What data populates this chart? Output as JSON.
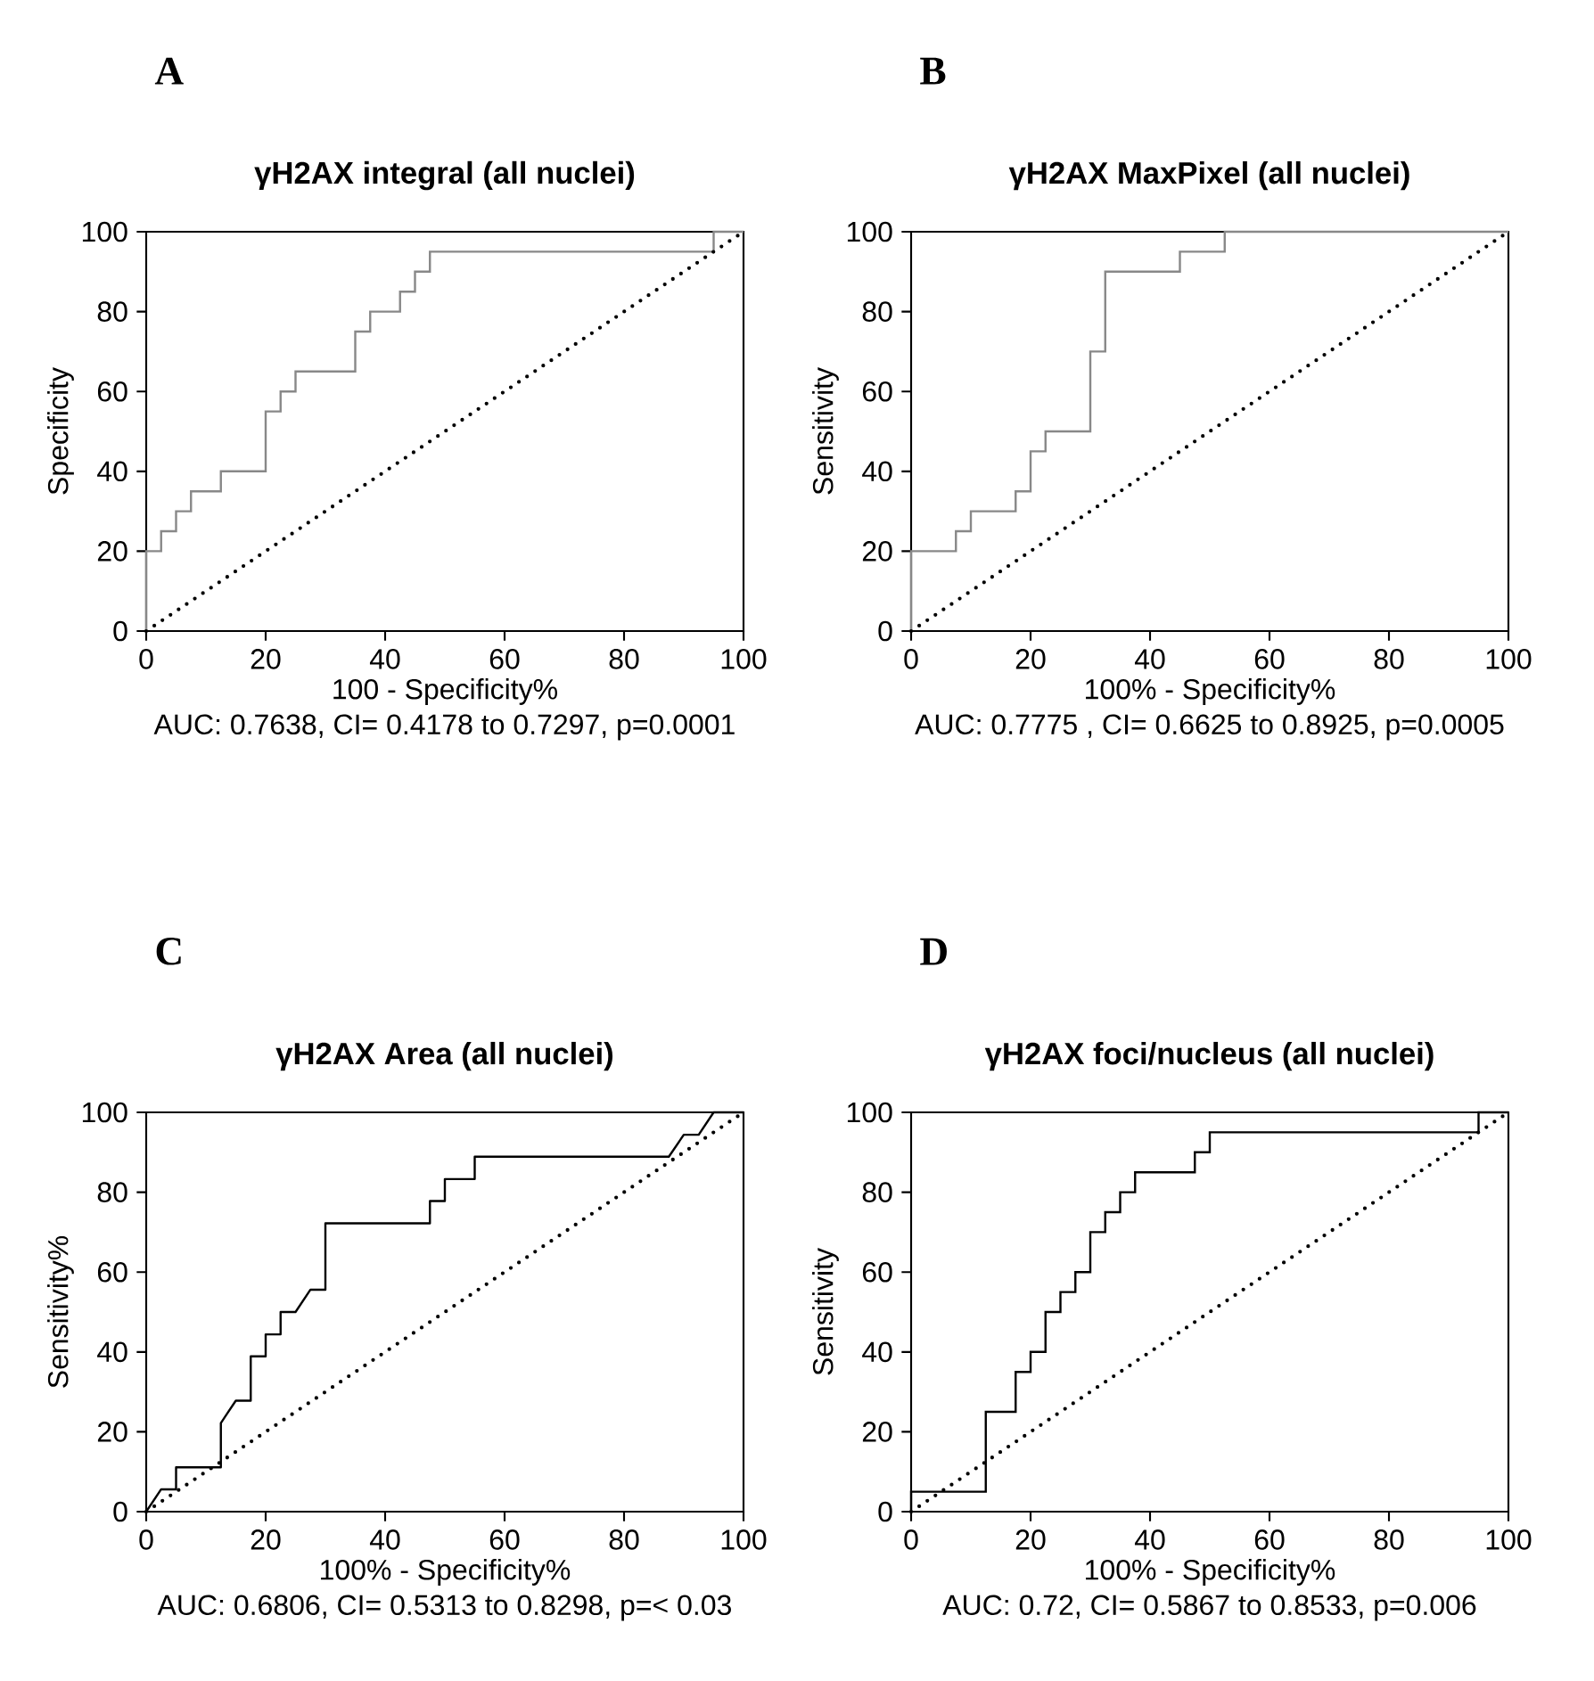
{
  "chart_data": [
    {
      "type": "line",
      "title": "γH2AX integral (all nuclei)",
      "xlabel": "100 - Specificity%",
      "ylabel": "Specificity",
      "annotations": [
        "A",
        "AUC: 0.7638, CI= 0.4178 to 0.7297, p=0.0001"
      ],
      "xlim": [
        0,
        100
      ],
      "ylim": [
        0,
        100
      ],
      "xticks": [
        0,
        20,
        40,
        60,
        80,
        100
      ],
      "yticks": [
        0,
        20,
        40,
        60,
        80,
        100
      ],
      "series": [
        {
          "type": "step",
          "color": "#888888",
          "x": [
            0,
            0,
            2.5,
            5,
            7.5,
            12.5,
            20,
            22.5,
            25,
            35,
            37.5,
            42.5,
            45,
            47.5,
            95,
            100
          ],
          "values": [
            0,
            20,
            25,
            30,
            35,
            40,
            55,
            60,
            65,
            75,
            80,
            85,
            90,
            95,
            100,
            100
          ]
        },
        {
          "type": "line",
          "color": "#000000",
          "line_style": "dotted",
          "x": [
            0,
            100
          ],
          "values": [
            0,
            100
          ]
        }
      ]
    },
    {
      "type": "line",
      "title": "γH2AX MaxPixel (all nuclei)",
      "xlabel": "100% - Specificity%",
      "ylabel": "Sensitivity",
      "annotations": [
        "B",
        "AUC: 0.7775 , CI= 0.6625 to 0.8925, p=0.0005"
      ],
      "xlim": [
        0,
        100
      ],
      "ylim": [
        0,
        100
      ],
      "xticks": [
        0,
        20,
        40,
        60,
        80,
        100
      ],
      "yticks": [
        0,
        20,
        40,
        60,
        80,
        100
      ],
      "series": [
        {
          "type": "step",
          "color": "#888888",
          "x": [
            0,
            0,
            7.5,
            10,
            17.5,
            20,
            22.5,
            30,
            32.5,
            45,
            52.5,
            100
          ],
          "values": [
            0,
            20,
            25,
            30,
            35,
            45,
            50,
            70,
            90,
            95,
            100,
            100
          ]
        },
        {
          "type": "line",
          "color": "#000000",
          "line_style": "dotted",
          "x": [
            0,
            100
          ],
          "values": [
            0,
            100
          ]
        }
      ]
    },
    {
      "type": "line",
      "title": "γH2AX Area (all nuclei)",
      "xlabel": "100% - Specificity%",
      "ylabel": "Sensitivity%",
      "annotations": [
        "C",
        "AUC: 0.6806, CI= 0.5313 to 0.8298, p=< 0.03"
      ],
      "xlim": [
        0,
        100
      ],
      "ylim": [
        0,
        100
      ],
      "xticks": [
        0,
        20,
        40,
        60,
        80,
        100
      ],
      "yticks": [
        0,
        20,
        40,
        60,
        80,
        100
      ],
      "series": [
        {
          "color": "#000000",
          "x": [
            0,
            2.5,
            5,
            5,
            12.5,
            12.5,
            15,
            17.5,
            17.5,
            20,
            20,
            22.5,
            22.5,
            25,
            27.5,
            30,
            30,
            47.5,
            47.5,
            50,
            50,
            55,
            55,
            87.5,
            90,
            92.5,
            95,
            100
          ],
          "values": [
            0,
            5.6,
            5.6,
            11.1,
            11.1,
            22.2,
            27.8,
            27.8,
            38.9,
            38.9,
            44.4,
            44.4,
            50,
            50,
            55.6,
            55.6,
            72.2,
            72.2,
            77.8,
            77.8,
            83.3,
            83.3,
            88.9,
            88.9,
            94.4,
            94.4,
            100,
            100
          ]
        },
        {
          "type": "line",
          "color": "#000000",
          "line_style": "dotted",
          "x": [
            0,
            100
          ],
          "values": [
            0,
            100
          ]
        }
      ]
    },
    {
      "type": "line",
      "title": "γH2AX foci/nucleus (all nuclei)",
      "xlabel": "100% - Specificity%",
      "ylabel": "Sensitivity",
      "annotations": [
        "D",
        "AUC: 0.72, CI= 0.5867 to 0.8533, p=0.006"
      ],
      "xlim": [
        0,
        100
      ],
      "ylim": [
        0,
        100
      ],
      "xticks": [
        0,
        20,
        40,
        60,
        80,
        100
      ],
      "yticks": [
        0,
        20,
        40,
        60,
        80,
        100
      ],
      "series": [
        {
          "type": "step",
          "color": "#000000",
          "x": [
            0,
            0,
            12.5,
            17.5,
            20,
            22.5,
            25,
            27.5,
            30,
            32.5,
            35,
            37.5,
            47.5,
            50,
            95,
            100
          ],
          "values": [
            0,
            5,
            25,
            35,
            40,
            50,
            55,
            60,
            70,
            75,
            80,
            85,
            90,
            95,
            100,
            100
          ]
        },
        {
          "type": "line",
          "color": "#000000",
          "line_style": "dotted",
          "x": [
            0,
            100
          ],
          "values": [
            0,
            100
          ]
        }
      ]
    }
  ]
}
